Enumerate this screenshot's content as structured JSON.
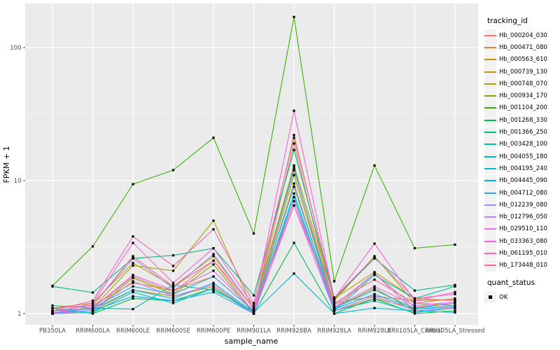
{
  "chart_data": {
    "type": "line",
    "title": "",
    "xlabel": "sample_name",
    "ylabel": "FPKM + 1",
    "y_scale": "log10",
    "ylim": [
      0.82,
      215
    ],
    "y_ticks": [
      1,
      10,
      100
    ],
    "y_minor_ticks": [
      3.162,
      31.623
    ],
    "grid": true,
    "panel_bg": "#EBEBEB",
    "grid_color": "#FFFFFF",
    "axis_text_color": "#4D4D4D",
    "legend_position": "right",
    "legend_title": "tracking_id",
    "quant_legend": {
      "title": "quant_status",
      "items": [
        "OK"
      ]
    },
    "marker": {
      "shape": "square",
      "color": "#000000",
      "size": 3.2
    },
    "categories": [
      "PB350LA",
      "RRIM600LA",
      "RRIM600LE",
      "RRIM600SE",
      "RRIM600PE",
      "RRIM901LA",
      "RRIM928BA",
      "RRIM928LA",
      "RRIM928LE",
      "RRII105LA_Control",
      "RRII105LA_Stressed"
    ],
    "series": [
      {
        "name": "Hb_000204_030",
        "color": "#F8766D",
        "values": [
          1.05,
          1.1,
          1.9,
          1.45,
          2.5,
          1.02,
          19.0,
          1.1,
          2.0,
          1.05,
          1.1
        ]
      },
      {
        "name": "Hb_000471_080",
        "color": "#EA8331",
        "values": [
          1.1,
          1.15,
          1.7,
          1.5,
          1.9,
          1.05,
          12.0,
          1.2,
          1.35,
          1.25,
          1.28
        ]
      },
      {
        "name": "Hb_000563_610",
        "color": "#D89000",
        "values": [
          1.0,
          1.05,
          1.5,
          1.35,
          1.6,
          1.0,
          9.5,
          1.05,
          1.3,
          1.1,
          1.2
        ]
      },
      {
        "name": "Hb_000739_130",
        "color": "#C09B00",
        "values": [
          1.1,
          1.2,
          2.4,
          1.6,
          2.7,
          1.1,
          13.0,
          1.3,
          2.05,
          1.3,
          1.25
        ]
      },
      {
        "name": "Hb_000748_070",
        "color": "#A3A500",
        "values": [
          1.05,
          1.1,
          2.3,
          2.1,
          5.0,
          1.05,
          22.0,
          1.25,
          2.7,
          1.2,
          1.15
        ]
      },
      {
        "name": "Hb_000934_170",
        "color": "#7CAE00",
        "values": [
          1.0,
          1.05,
          1.85,
          1.4,
          2.34,
          1.0,
          11.0,
          1.1,
          1.55,
          1.05,
          1.1
        ]
      },
      {
        "name": "Hb_001104_200",
        "color": "#39B600",
        "values": [
          1.62,
          3.2,
          9.4,
          12.0,
          21.0,
          4.0,
          170.0,
          1.75,
          13.0,
          3.1,
          3.3
        ]
      },
      {
        "name": "Hb_001268_330",
        "color": "#00BB4E",
        "values": [
          1.1,
          1.0,
          1.3,
          1.25,
          1.55,
          1.0,
          3.4,
          1.0,
          1.3,
          1.0,
          1.05
        ]
      },
      {
        "name": "Hb_001366_250",
        "color": "#00BF7D",
        "values": [
          1.6,
          1.44,
          2.6,
          2.74,
          3.1,
          1.37,
          17.0,
          1.3,
          2.6,
          1.49,
          1.64
        ]
      },
      {
        "name": "Hb_003428_100",
        "color": "#00C1A3",
        "values": [
          1.15,
          1.1,
          1.08,
          1.64,
          1.5,
          1.05,
          12.5,
          1.05,
          1.95,
          1.3,
          1.6
        ]
      },
      {
        "name": "Hb_004055_180",
        "color": "#00BFC4",
        "values": [
          1.0,
          1.02,
          1.45,
          1.2,
          1.55,
          1.0,
          7.5,
          1.05,
          1.25,
          1.02,
          1.1
        ]
      },
      {
        "name": "Hb_004195_240",
        "color": "#00BAE0",
        "values": [
          1.05,
          1.08,
          1.5,
          1.3,
          1.7,
          1.02,
          2.0,
          1.0,
          1.1,
          1.05,
          1.02
        ]
      },
      {
        "name": "Hb_004445_090",
        "color": "#00B0F6",
        "values": [
          1.02,
          1.05,
          1.35,
          1.25,
          1.45,
          1.0,
          8.0,
          1.08,
          1.4,
          1.08,
          1.12
        ]
      },
      {
        "name": "Hb_004712_080",
        "color": "#35A2FF",
        "values": [
          1.0,
          1.1,
          1.6,
          1.4,
          1.9,
          1.05,
          9.0,
          1.1,
          1.5,
          1.1,
          1.15
        ]
      },
      {
        "name": "Hb_012239_080",
        "color": "#9590FF",
        "values": [
          1.05,
          1.15,
          2.6,
          1.55,
          2.8,
          1.08,
          12.0,
          1.15,
          2.0,
          1.12,
          1.2
        ]
      },
      {
        "name": "Hb_012796_050",
        "color": "#C77CFF",
        "values": [
          1.0,
          1.05,
          1.75,
          1.35,
          1.65,
          1.0,
          6.5,
          1.05,
          1.35,
          1.05,
          1.1
        ]
      },
      {
        "name": "Hb_029510_110",
        "color": "#E76BF3",
        "values": [
          1.02,
          1.1,
          1.95,
          1.5,
          2.1,
          1.05,
          7.0,
          1.12,
          1.6,
          1.15,
          1.22
        ]
      },
      {
        "name": "Hb_033363_080",
        "color": "#FA62DB",
        "values": [
          1.0,
          1.2,
          3.4,
          1.7,
          3.1,
          1.15,
          33.5,
          1.3,
          3.36,
          1.25,
          1.45
        ]
      },
      {
        "name": "Hb_061195_010",
        "color": "#FF62BC",
        "values": [
          1.05,
          1.25,
          3.8,
          2.28,
          4.3,
          1.2,
          21.0,
          1.32,
          2.65,
          1.3,
          1.4
        ]
      },
      {
        "name": "Hb_173448_010",
        "color": "#FF6A98",
        "values": [
          1.1,
          1.15,
          2.7,
          1.6,
          2.5,
          1.1,
          6.5,
          1.2,
          1.8,
          1.2,
          1.3
        ]
      }
    ]
  }
}
